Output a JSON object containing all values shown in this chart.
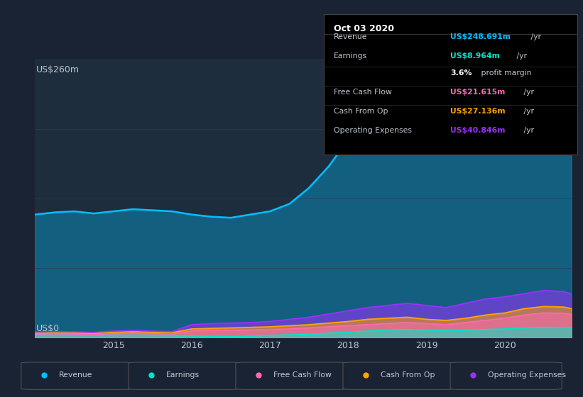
{
  "bg_color": "#1a2333",
  "plot_bg_color": "#1e2d3d",
  "x_years": [
    2014.0,
    2014.25,
    2014.5,
    2014.75,
    2015.0,
    2015.25,
    2015.5,
    2015.75,
    2016.0,
    2016.25,
    2016.5,
    2016.75,
    2017.0,
    2017.25,
    2017.5,
    2017.75,
    2018.0,
    2018.25,
    2018.5,
    2018.75,
    2019.0,
    2019.25,
    2019.5,
    2019.75,
    2020.0,
    2020.25,
    2020.5,
    2020.75,
    2020.85
  ],
  "revenue": [
    115,
    117,
    118,
    116,
    118,
    120,
    119,
    118,
    115,
    113,
    112,
    115,
    118,
    125,
    140,
    160,
    185,
    200,
    210,
    215,
    215,
    218,
    222,
    225,
    235,
    248,
    255,
    252,
    248
  ],
  "earnings": [
    2,
    2.1,
    2.0,
    1.9,
    2.1,
    2.2,
    2.0,
    1.8,
    1.5,
    1.2,
    1.0,
    1.3,
    2.0,
    2.5,
    3.0,
    4.0,
    5.0,
    6.0,
    7.0,
    7.5,
    7.0,
    6.5,
    7.0,
    7.5,
    8.0,
    9.0,
    9.5,
    9.2,
    9.0
  ],
  "free_cash_flow": [
    3,
    3.5,
    3.0,
    2.5,
    3.5,
    4.0,
    3.5,
    3.0,
    6.0,
    6.5,
    6.8,
    7.0,
    7.5,
    8.0,
    9.0,
    10.0,
    11.0,
    12.0,
    13.0,
    14.0,
    13.0,
    12.0,
    14.0,
    16.0,
    18.0,
    21.0,
    23.0,
    22.5,
    21.6
  ],
  "cash_from_op": [
    4,
    4.5,
    4.2,
    3.8,
    5.0,
    5.5,
    5.0,
    4.5,
    8.0,
    8.5,
    9.0,
    9.5,
    10.0,
    11.0,
    12.0,
    13.5,
    15.0,
    17.0,
    18.0,
    19.0,
    17.0,
    16.0,
    18.0,
    21.0,
    23.0,
    27.0,
    29.0,
    28.5,
    27.1
  ],
  "op_expenses": [
    5,
    5.5,
    5.2,
    4.8,
    6.0,
    6.5,
    6.0,
    5.5,
    12.0,
    13.0,
    13.5,
    14.0,
    15.0,
    17.0,
    19.0,
    22.0,
    25.0,
    28.0,
    30.0,
    32.0,
    30.0,
    28.0,
    32.0,
    36.0,
    38.0,
    41.0,
    44.0,
    43.0,
    40.8
  ],
  "revenue_color": "#00bfff",
  "earnings_color": "#00e5c8",
  "free_cash_flow_color": "#ff69b4",
  "cash_from_op_color": "#ffa500",
  "op_expenses_color": "#9b30ff",
  "ylabel": "US$260m",
  "y0_label": "US$0",
  "x_ticks": [
    2015,
    2016,
    2017,
    2018,
    2019,
    2020
  ],
  "ylim": [
    0,
    260
  ],
  "text_color": "#c0c8d0",
  "grid_color": "#2a3d52",
  "tooltip_title": "Oct 03 2020",
  "tooltip_bg": "#000000",
  "tooltip_sep_color": "#333333",
  "tooltip_rows": [
    {
      "label": "Revenue",
      "val_col": "US$248.691m",
      "val_plain": " /yr",
      "color": "#00bfff",
      "has_sep": true
    },
    {
      "label": "Earnings",
      "val_col": "US$8.964m",
      "val_plain": " /yr",
      "color": "#00e5c8",
      "has_sep": false
    },
    {
      "label": "",
      "val_col": "3.6%",
      "val_plain": " profit margin",
      "color": "#ffffff",
      "has_sep": true
    },
    {
      "label": "Free Cash Flow",
      "val_col": "US$21.615m",
      "val_plain": " /yr",
      "color": "#ff69b4",
      "has_sep": true
    },
    {
      "label": "Cash From Op",
      "val_col": "US$27.136m",
      "val_plain": " /yr",
      "color": "#ffa500",
      "has_sep": true
    },
    {
      "label": "Operating Expenses",
      "val_col": "US$40.846m",
      "val_plain": " /yr",
      "color": "#9b30ff",
      "has_sep": false
    }
  ],
  "legend_items": [
    {
      "label": "Revenue",
      "color": "#00bfff"
    },
    {
      "label": "Earnings",
      "color": "#00e5c8"
    },
    {
      "label": "Free Cash Flow",
      "color": "#ff69b4"
    },
    {
      "label": "Cash From Op",
      "color": "#ffa500"
    },
    {
      "label": "Operating Expenses",
      "color": "#9b30ff"
    }
  ]
}
